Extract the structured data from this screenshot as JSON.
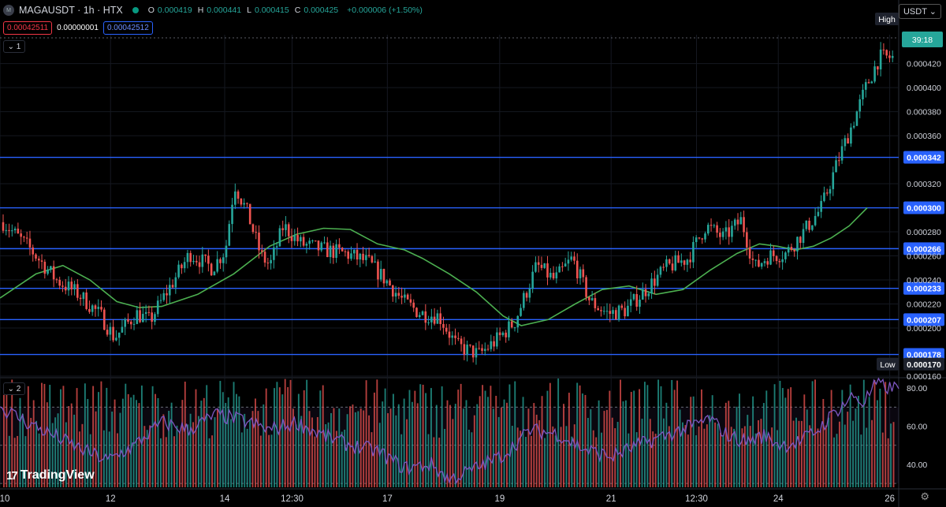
{
  "header": {
    "symbol": "MAGAUSDT · 1h · HTX",
    "ohlc": [
      {
        "k": "O",
        "v": "0.000419"
      },
      {
        "k": "H",
        "v": "0.000441"
      },
      {
        "k": "L",
        "v": "0.000415"
      },
      {
        "k": "C",
        "v": "0.000425"
      },
      {
        "k": "",
        "v": "+0.000006 (+1.50%)"
      }
    ],
    "sell_price": "0.00042511",
    "spread": "0.00000001",
    "buy_price": "0.00042512",
    "currency": "USDT",
    "logo_glyph": "M"
  },
  "panes": {
    "main_label": "1",
    "indicator_label": "2"
  },
  "branding": {
    "name": "TradingView",
    "mark": "17"
  },
  "icons": {
    "settings": "gear-icon",
    "collapse": "chevron-down-icon"
  },
  "colors": {
    "up": "#26a69a",
    "down": "#ef5350",
    "ma": "#4caf50",
    "hline": "#2962ff",
    "rsi": "#7e57c2",
    "countdown": "#26a69a"
  },
  "chart_data": [
    {
      "type": "candlestick",
      "title": "MAGAUSDT · 1h · HTX",
      "ylim": [
        0.00016,
        0.000444
      ],
      "y_ticks": [
        "0.000160",
        "0.000200",
        "0.000220",
        "0.000240",
        "0.000260",
        "0.000280",
        "0.000320",
        "0.000360",
        "0.000380",
        "0.000400",
        "0.000420"
      ],
      "x_ticks": [
        "10",
        "12",
        "14",
        "12:30",
        "17",
        "19",
        "21",
        "12:30",
        "24",
        "26"
      ],
      "x_tick_positions": [
        0.0,
        0.123,
        0.25,
        0.325,
        0.431,
        0.556,
        0.68,
        0.775,
        0.866,
        0.99
      ],
      "horizontal_levels": [
        {
          "value": 0.000342,
          "label": "0.000342"
        },
        {
          "value": 0.0003,
          "label": "0.000300"
        },
        {
          "value": 0.000266,
          "label": "0.000266"
        },
        {
          "value": 0.000233,
          "label": "0.000233"
        },
        {
          "value": 0.000207,
          "label": "0.000207"
        },
        {
          "value": 0.000178,
          "label": "0.000178"
        }
      ],
      "price_markers": {
        "high_label": "High",
        "low_label": "Low",
        "low_value": "0.000170",
        "countdown": "39:18",
        "last_value": 0.000425
      },
      "close_path": [
        [
          0.0,
          0.000288
        ],
        [
          0.03,
          0.000266
        ],
        [
          0.06,
          0.00024
        ],
        [
          0.085,
          0.000228
        ],
        [
          0.11,
          0.00021
        ],
        [
          0.125,
          0.000192
        ],
        [
          0.15,
          0.000212
        ],
        [
          0.165,
          0.000206
        ],
        [
          0.18,
          0.000225
        ],
        [
          0.21,
          0.000262
        ],
        [
          0.235,
          0.00025
        ],
        [
          0.25,
          0.000265
        ],
        [
          0.26,
          0.00032
        ],
        [
          0.275,
          0.000295
        ],
        [
          0.29,
          0.00026
        ],
        [
          0.3,
          0.000252
        ],
        [
          0.315,
          0.000285
        ],
        [
          0.335,
          0.00027
        ],
        [
          0.36,
          0.000265
        ],
        [
          0.385,
          0.000262
        ],
        [
          0.41,
          0.000255
        ],
        [
          0.43,
          0.00024
        ],
        [
          0.45,
          0.000222
        ],
        [
          0.47,
          0.000212
        ],
        [
          0.49,
          0.00021
        ],
        [
          0.51,
          0.000185
        ],
        [
          0.535,
          0.000178
        ],
        [
          0.555,
          0.00019
        ],
        [
          0.575,
          0.000205
        ],
        [
          0.6,
          0.000252
        ],
        [
          0.62,
          0.00024
        ],
        [
          0.64,
          0.000258
        ],
        [
          0.66,
          0.000222
        ],
        [
          0.68,
          0.000212
        ],
        [
          0.7,
          0.000215
        ],
        [
          0.72,
          0.00023
        ],
        [
          0.745,
          0.00025
        ],
        [
          0.77,
          0.000258
        ],
        [
          0.79,
          0.000285
        ],
        [
          0.81,
          0.000275
        ],
        [
          0.83,
          0.00029
        ],
        [
          0.845,
          0.00025
        ],
        [
          0.86,
          0.00026
        ],
        [
          0.88,
          0.000262
        ],
        [
          0.9,
          0.00028
        ],
        [
          0.92,
          0.0003
        ],
        [
          0.94,
          0.000342
        ],
        [
          0.955,
          0.00037
        ],
        [
          0.97,
          0.0004
        ],
        [
          0.985,
          0.000425
        ]
      ],
      "moving_average": [
        [
          0.0,
          0.000225
        ],
        [
          0.04,
          0.000245
        ],
        [
          0.07,
          0.000252
        ],
        [
          0.1,
          0.00024
        ],
        [
          0.13,
          0.000222
        ],
        [
          0.155,
          0.000217
        ],
        [
          0.18,
          0.000218
        ],
        [
          0.22,
          0.000228
        ],
        [
          0.26,
          0.000245
        ],
        [
          0.3,
          0.000268
        ],
        [
          0.33,
          0.000278
        ],
        [
          0.36,
          0.000283
        ],
        [
          0.39,
          0.000282
        ],
        [
          0.42,
          0.00027
        ],
        [
          0.45,
          0.000265
        ],
        [
          0.47,
          0.000258
        ],
        [
          0.5,
          0.000245
        ],
        [
          0.53,
          0.00023
        ],
        [
          0.56,
          0.00021
        ],
        [
          0.58,
          0.000202
        ],
        [
          0.61,
          0.000207
        ],
        [
          0.64,
          0.00022
        ],
        [
          0.67,
          0.000232
        ],
        [
          0.7,
          0.000235
        ],
        [
          0.73,
          0.000228
        ],
        [
          0.76,
          0.000232
        ],
        [
          0.79,
          0.000248
        ],
        [
          0.82,
          0.000262
        ],
        [
          0.845,
          0.00027
        ],
        [
          0.865,
          0.000268
        ],
        [
          0.885,
          0.000265
        ],
        [
          0.905,
          0.000268
        ],
        [
          0.925,
          0.000275
        ],
        [
          0.945,
          0.000285
        ],
        [
          0.965,
          0.0003
        ]
      ]
    },
    {
      "type": "bar+line",
      "title": "",
      "ylim": [
        28,
        85
      ],
      "y_ticks": [
        "40.00",
        "60.00",
        "80.00"
      ],
      "overbought": 70,
      "oversold": 30,
      "rsi_path": [
        [
          0.0,
          70
        ],
        [
          0.03,
          62
        ],
        [
          0.06,
          55
        ],
        [
          0.09,
          48
        ],
        [
          0.12,
          42
        ],
        [
          0.15,
          50
        ],
        [
          0.18,
          62
        ],
        [
          0.21,
          58
        ],
        [
          0.24,
          66
        ],
        [
          0.27,
          63
        ],
        [
          0.3,
          58
        ],
        [
          0.33,
          62
        ],
        [
          0.36,
          55
        ],
        [
          0.39,
          50
        ],
        [
          0.42,
          47
        ],
        [
          0.45,
          38
        ],
        [
          0.48,
          40
        ],
        [
          0.5,
          32
        ],
        [
          0.53,
          38
        ],
        [
          0.56,
          45
        ],
        [
          0.59,
          58
        ],
        [
          0.62,
          56
        ],
        [
          0.65,
          48
        ],
        [
          0.68,
          44
        ],
        [
          0.71,
          50
        ],
        [
          0.74,
          55
        ],
        [
          0.77,
          60
        ],
        [
          0.79,
          64
        ],
        [
          0.81,
          55
        ],
        [
          0.83,
          52
        ],
        [
          0.85,
          55
        ],
        [
          0.87,
          50
        ],
        [
          0.89,
          52
        ],
        [
          0.91,
          58
        ],
        [
          0.93,
          68
        ],
        [
          0.95,
          76
        ],
        [
          0.96,
          72
        ],
        [
          0.975,
          82
        ],
        [
          0.99,
          80
        ]
      ]
    }
  ]
}
